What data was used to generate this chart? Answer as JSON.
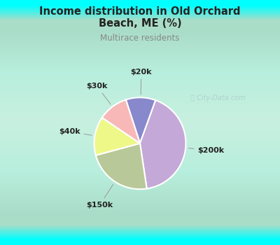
{
  "title_line1": "Income distribution in Old Orchard",
  "title_line2": "Beach, ME (%)",
  "subtitle": "Multirace residents",
  "labels": [
    "$20k",
    "$200k",
    "$150k",
    "$40k",
    "$30k"
  ],
  "sizes": [
    10,
    40,
    22,
    13,
    10
  ],
  "colors": [
    "#8888cc",
    "#c4a8d8",
    "#b8c898",
    "#eef888",
    "#f8b8b8"
  ],
  "bg_top_color": "#00ffff",
  "bg_mid_color": "#b8eedd",
  "bg_bottom_color": "#00ffff",
  "title_color": "#222222",
  "subtitle_color": "#888888",
  "label_color": "#222222",
  "watermark_text": "City-Data.com",
  "watermark_color": "#aacccc",
  "startangle": 108,
  "label_radii": [
    1.28,
    1.28,
    1.32,
    1.28,
    1.28
  ],
  "edge_color": "white",
  "edge_width": 1.5
}
